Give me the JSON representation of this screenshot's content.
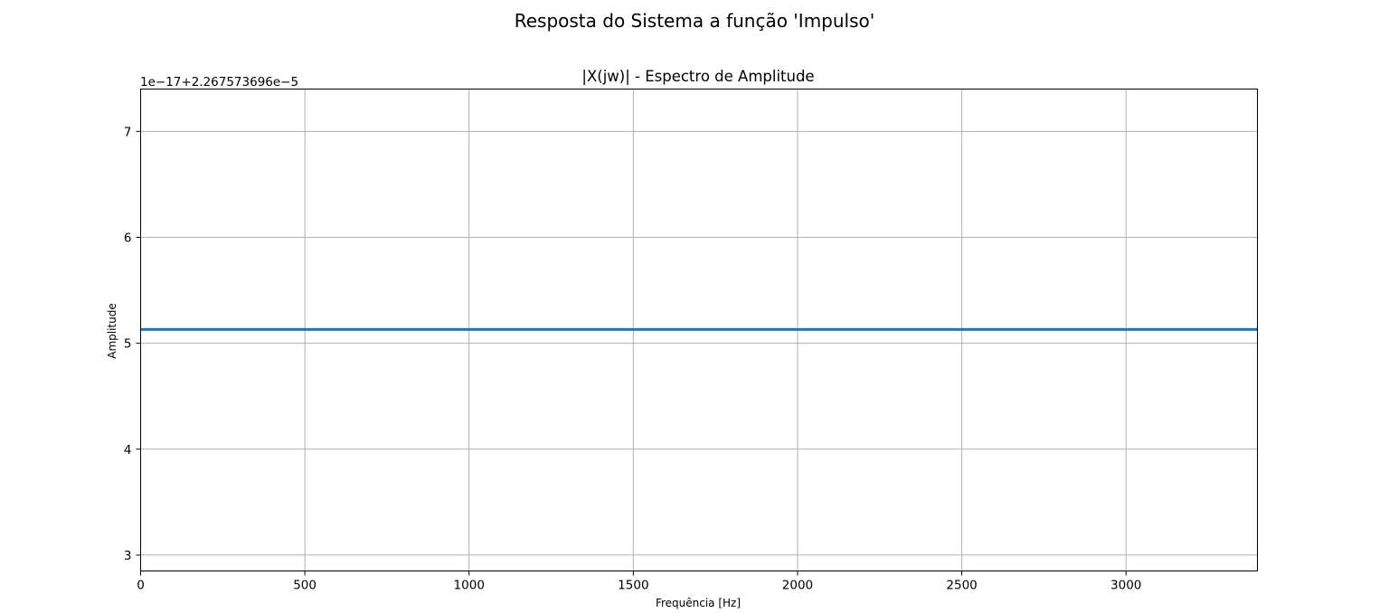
{
  "figure": {
    "suptitle": "Resposta do Sistema a função 'Impulso'"
  },
  "chart_data": {
    "type": "line",
    "title": "|X(jw)| - Espectro de Amplitude",
    "xlabel": "Frequência [Hz]",
    "ylabel": "Amplitude",
    "y_offset_text": "1e−17+2.267573696e−5",
    "y_scale_factor": 1e-17,
    "y_offset_value": 2.267573696e-05,
    "xlim": [
      0,
      3400
    ],
    "ylim": [
      2.85,
      7.4
    ],
    "x_ticks": [
      0,
      500,
      1000,
      1500,
      2000,
      2500,
      3000
    ],
    "x_tick_labels": [
      "0",
      "500",
      "1000",
      "1500",
      "2000",
      "2500",
      "3000"
    ],
    "y_ticks": [
      3,
      4,
      5,
      6,
      7
    ],
    "y_tick_labels": [
      "3",
      "4",
      "5",
      "6",
      "7"
    ],
    "grid": true,
    "series": [
      {
        "color": "#1f77b4",
        "x": [
          0,
          3400
        ],
        "y": [
          5.13,
          5.13
        ]
      }
    ]
  }
}
